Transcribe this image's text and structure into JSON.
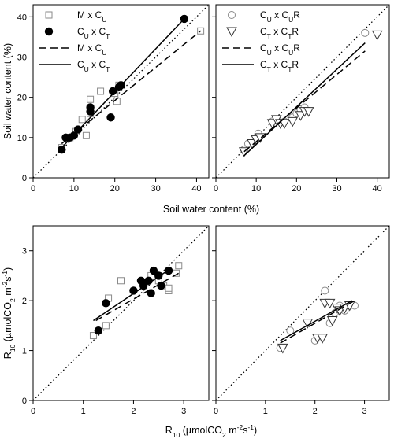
{
  "chart_data": [
    {
      "type": "scatter",
      "panel": "top-left",
      "xlabel": "Soil water content (%)",
      "ylabel": "Soil water content (%)",
      "xlim": [
        0,
        43
      ],
      "ylim": [
        0,
        43
      ],
      "xticks": [
        "0",
        "10",
        "20",
        "30",
        "40"
      ],
      "yticks": [
        "0",
        "10",
        "20",
        "30",
        "40"
      ],
      "one_to_one_line": true,
      "legend": [
        {
          "main": "M x C",
          "sub": "U",
          "kind": "marker",
          "marker": "open-square"
        },
        {
          "main": "C",
          "sub": "U",
          "main2": " x C",
          "sub2": "T",
          "kind": "marker",
          "marker": "filled-circle"
        },
        {
          "main": "M x C",
          "sub": "U",
          "kind": "dashed-line"
        },
        {
          "main": "C",
          "sub": "U",
          "main2": " x C",
          "sub2": "T",
          "kind": "solid-line"
        }
      ],
      "series": [
        {
          "marker": "open-square",
          "points": [
            [
              7,
              7.5
            ],
            [
              9,
              10
            ],
            [
              10.5,
              11.5
            ],
            [
              12,
              14.5
            ],
            [
              13,
              10.5
            ],
            [
              14,
              19.5
            ],
            [
              14,
              16
            ],
            [
              16.5,
              21.5
            ],
            [
              20,
              21
            ],
            [
              20.5,
              19
            ],
            [
              21,
              23
            ],
            [
              41,
              36.5
            ]
          ],
          "fit": {
            "style": "dashed",
            "x": [
              7,
              41
            ],
            "y": [
              8.5,
              36.5
            ]
          }
        },
        {
          "marker": "filled-circle",
          "points": [
            [
              7,
              7
            ],
            [
              8,
              10
            ],
            [
              9,
              10
            ],
            [
              10,
              10.5
            ],
            [
              11,
              12
            ],
            [
              14,
              16.5
            ],
            [
              14,
              17.5
            ],
            [
              19,
              15
            ],
            [
              19.5,
              21.5
            ],
            [
              21,
              22.5
            ],
            [
              21.5,
              23
            ],
            [
              37,
              39.5
            ]
          ],
          "fit": {
            "style": "solid",
            "x": [
              7,
              37
            ],
            "y": [
              7.5,
              39.5
            ]
          }
        }
      ]
    },
    {
      "type": "scatter",
      "panel": "top-right",
      "xlabel": "Soil water content (%)",
      "ylabel": "",
      "xlim": [
        0,
        43
      ],
      "ylim": [
        0,
        43
      ],
      "xticks": [
        "0",
        "10",
        "20",
        "30",
        "40"
      ],
      "yticks": [],
      "one_to_one_line": true,
      "legend": [
        {
          "main": "C",
          "sub": "U",
          "main2": " x C",
          "sub2": "U",
          "main3": "R",
          "kind": "marker",
          "marker": "open-circle"
        },
        {
          "main": "C",
          "sub": "T",
          "main2": " x C",
          "sub2": "T",
          "main3": "R",
          "kind": "marker",
          "marker": "open-triangle-down"
        },
        {
          "main": "C",
          "sub": "U",
          "main2": " x C",
          "sub2": "U",
          "main3": "R",
          "kind": "dashed-line"
        },
        {
          "main": "C",
          "sub": "T",
          "main2": " x C",
          "sub2": "T",
          "main3": "R",
          "kind": "solid-line"
        }
      ],
      "series": [
        {
          "marker": "open-circle",
          "points": [
            [
              7,
              7
            ],
            [
              8,
              8.5
            ],
            [
              10,
              10
            ],
            [
              10.5,
              11
            ],
            [
              14,
              14
            ],
            [
              15,
              14.5
            ],
            [
              17,
              14
            ],
            [
              19,
              15
            ],
            [
              20,
              16
            ],
            [
              21,
              17
            ],
            [
              22,
              17.5
            ],
            [
              37,
              36
            ]
          ],
          "fit": {
            "style": "dashed",
            "x": [
              7,
              37
            ],
            "y": [
              6.5,
              31.5
            ]
          }
        },
        {
          "marker": "open-triangle-down",
          "points": [
            [
              7,
              6.5
            ],
            [
              9,
              8.5
            ],
            [
              10,
              9.5
            ],
            [
              11,
              10
            ],
            [
              14,
              13.5
            ],
            [
              15,
              14.5
            ],
            [
              16,
              13.5
            ],
            [
              17,
              13.5
            ],
            [
              19,
              14
            ],
            [
              21,
              15.5
            ],
            [
              22,
              16.5
            ],
            [
              23,
              16.5
            ],
            [
              40,
              35.5
            ]
          ],
          "fit": {
            "style": "solid",
            "x": [
              7,
              37
            ],
            "y": [
              5.5,
              33.5
            ]
          }
        }
      ]
    },
    {
      "type": "scatter",
      "panel": "bottom-left",
      "xlabel": "R10 (µmolCO2 m-2s-1)",
      "ylabel": "R10 (µmolCO2 m-2s-1)",
      "xlim": [
        0,
        3.5
      ],
      "ylim": [
        0,
        3.5
      ],
      "xticks": [
        "0",
        "1",
        "2",
        "3"
      ],
      "yticks": [
        "0",
        "1",
        "2",
        "3"
      ],
      "one_to_one_line": true,
      "series": [
        {
          "marker": "open-square",
          "points": [
            [
              1.2,
              1.3
            ],
            [
              1.45,
              1.5
            ],
            [
              1.5,
              2.05
            ],
            [
              1.75,
              2.4
            ],
            [
              2.2,
              2.3
            ],
            [
              2.35,
              2.5
            ],
            [
              2.5,
              2.4
            ],
            [
              2.6,
              2.3
            ],
            [
              2.7,
              2.2
            ],
            [
              2.7,
              2.25
            ],
            [
              2.85,
              2.55
            ],
            [
              2.9,
              2.7
            ]
          ],
          "fit": {
            "style": "dashed",
            "x": [
              1.25,
              2.9
            ],
            "y": [
              1.6,
              2.55
            ]
          }
        },
        {
          "marker": "filled-circle",
          "points": [
            [
              1.3,
              1.4
            ],
            [
              1.45,
              1.95
            ],
            [
              2.0,
              2.2
            ],
            [
              2.15,
              2.4
            ],
            [
              2.2,
              2.3
            ],
            [
              2.3,
              2.4
            ],
            [
              2.35,
              2.15
            ],
            [
              2.4,
              2.6
            ],
            [
              2.5,
              2.5
            ],
            [
              2.55,
              2.3
            ],
            [
              2.7,
              2.6
            ]
          ],
          "fit": {
            "style": "solid",
            "x": [
              1.2,
              2.75
            ],
            "y": [
              1.6,
              2.65
            ]
          }
        }
      ]
    },
    {
      "type": "scatter",
      "panel": "bottom-right",
      "xlabel": "R10 (µmolCO2 m-2s-1)",
      "ylabel": "",
      "xlim": [
        0,
        3.5
      ],
      "ylim": [
        0,
        3.5
      ],
      "xticks": [
        "0",
        "1",
        "2",
        "3"
      ],
      "yticks": [],
      "one_to_one_line": true,
      "series": [
        {
          "marker": "open-circle",
          "points": [
            [
              1.3,
              1.05
            ],
            [
              1.5,
              1.4
            ],
            [
              2.0,
              1.2
            ],
            [
              2.2,
              2.2
            ],
            [
              2.3,
              1.55
            ],
            [
              2.4,
              1.75
            ],
            [
              2.5,
              1.9
            ],
            [
              2.6,
              1.8
            ],
            [
              2.7,
              1.9
            ],
            [
              2.8,
              1.9
            ]
          ],
          "fit": {
            "style": "dashed",
            "x": [
              1.3,
              2.8
            ],
            "y": [
              1.15,
              2.0
            ]
          }
        },
        {
          "marker": "open-triangle-down",
          "points": [
            [
              1.35,
              1.05
            ],
            [
              1.85,
              1.55
            ],
            [
              2.05,
              1.25
            ],
            [
              2.15,
              1.25
            ],
            [
              2.2,
              1.95
            ],
            [
              2.3,
              1.95
            ],
            [
              2.35,
              1.6
            ],
            [
              2.45,
              1.85
            ],
            [
              2.5,
              1.8
            ],
            [
              2.6,
              1.85
            ],
            [
              2.7,
              1.9
            ]
          ],
          "fit": {
            "style": "solid",
            "x": [
              1.3,
              2.75
            ],
            "y": [
              1.2,
              2.0
            ]
          }
        }
      ]
    }
  ]
}
